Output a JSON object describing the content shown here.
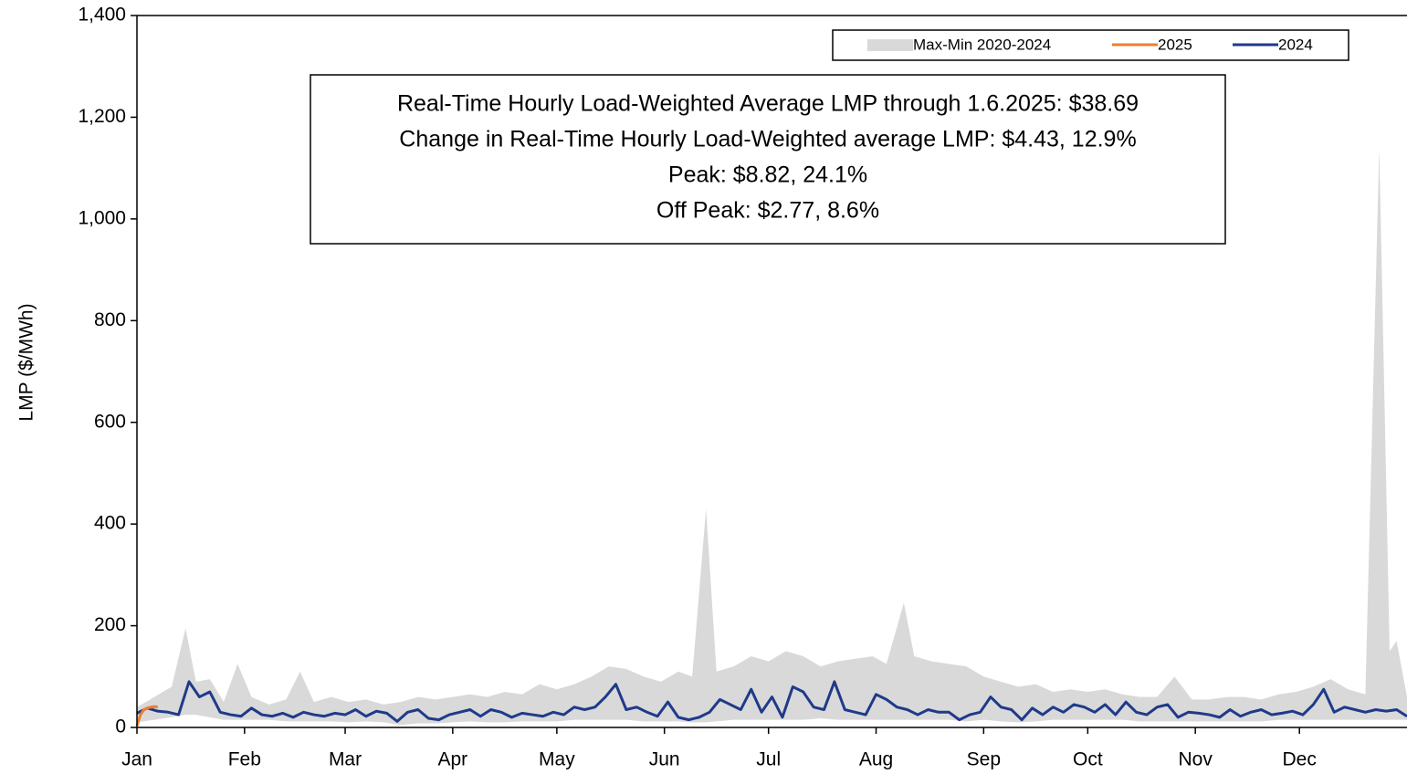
{
  "chart_data": {
    "type": "line",
    "y_label": "LMP ($/MWh)",
    "annotations": [
      "Real-Time Hourly Load-Weighted Average LMP through 1.6.2025: $38.69",
      "Change in Real-Time Hourly Load-Weighted average LMP: $4.43, 12.9%",
      "Peak: $8.82, 24.1%",
      "Off Peak: $2.77, 8.6%"
    ],
    "xlim": [
      0,
      366
    ],
    "xticks": [
      {
        "value": 0,
        "label": "Jan"
      },
      {
        "value": 31,
        "label": "Feb"
      },
      {
        "value": 60,
        "label": "Mar"
      },
      {
        "value": 91,
        "label": "Apr"
      },
      {
        "value": 121,
        "label": "May"
      },
      {
        "value": 152,
        "label": "Jun"
      },
      {
        "value": 182,
        "label": "Jul"
      },
      {
        "value": 213,
        "label": "Aug"
      },
      {
        "value": 244,
        "label": "Sep"
      },
      {
        "value": 274,
        "label": "Oct"
      },
      {
        "value": 305,
        "label": "Nov"
      },
      {
        "value": 335,
        "label": "Dec"
      }
    ],
    "ylim": [
      0,
      1400
    ],
    "yticks": [
      0,
      200,
      400,
      600,
      800,
      {
        "value": 1000,
        "label": "1,000"
      },
      {
        "value": 1200,
        "label": "1,200"
      },
      {
        "value": 1400,
        "label": "1,400"
      }
    ],
    "legend": "upper right",
    "band": {
      "name": "Max-Min 2020-2024",
      "color": "#d9d9d9",
      "x": [
        0,
        5,
        10,
        14,
        17,
        21,
        25,
        29,
        33,
        38,
        43,
        47,
        51,
        56,
        61,
        66,
        71,
        76,
        81,
        86,
        91,
        96,
        101,
        106,
        111,
        116,
        121,
        126,
        131,
        136,
        141,
        146,
        151,
        156,
        160,
        164,
        167,
        172,
        177,
        182,
        187,
        192,
        197,
        202,
        207,
        212,
        216,
        221,
        224,
        229,
        234,
        239,
        244,
        249,
        254,
        259,
        264,
        269,
        274,
        279,
        284,
        289,
        294,
        299,
        304,
        309,
        314,
        319,
        324,
        329,
        334,
        339,
        344,
        349,
        354,
        358,
        361,
        363,
        366
      ],
      "low": [
        10,
        15,
        20,
        25,
        25,
        20,
        15,
        15,
        15,
        15,
        12,
        12,
        12,
        12,
        10,
        12,
        10,
        5,
        8,
        8,
        10,
        12,
        10,
        10,
        12,
        12,
        12,
        15,
        15,
        15,
        15,
        12,
        12,
        12,
        10,
        10,
        12,
        15,
        15,
        15,
        15,
        15,
        18,
        15,
        15,
        15,
        15,
        15,
        15,
        15,
        15,
        12,
        15,
        12,
        10,
        12,
        15,
        15,
        15,
        15,
        15,
        12,
        12,
        12,
        12,
        12,
        12,
        12,
        12,
        15,
        15,
        15,
        15,
        15,
        15,
        15,
        15,
        15,
        15
      ],
      "high": [
        40,
        60,
        80,
        195,
        90,
        95,
        50,
        125,
        60,
        45,
        55,
        110,
        50,
        60,
        50,
        55,
        45,
        50,
        60,
        55,
        60,
        65,
        60,
        70,
        65,
        85,
        75,
        85,
        100,
        120,
        115,
        100,
        90,
        110,
        100,
        430,
        110,
        120,
        140,
        130,
        150,
        140,
        120,
        130,
        135,
        140,
        125,
        245,
        140,
        130,
        125,
        120,
        100,
        90,
        80,
        85,
        70,
        75,
        70,
        75,
        65,
        60,
        60,
        100,
        55,
        55,
        60,
        60,
        55,
        65,
        70,
        80,
        95,
        75,
        65,
        1140,
        150,
        170,
        60
      ]
    },
    "series": [
      {
        "name": "2025",
        "color": "#ed7d31",
        "x": [
          0,
          1,
          2,
          3,
          4,
          5,
          6
        ],
        "values": [
          3,
          25,
          35,
          38,
          40,
          41,
          40
        ]
      },
      {
        "name": "2024",
        "color": "#1f3a8a",
        "x": [
          0,
          3,
          6,
          9,
          12,
          15,
          18,
          21,
          24,
          27,
          30,
          33,
          36,
          39,
          42,
          45,
          48,
          51,
          54,
          57,
          60,
          63,
          66,
          69,
          72,
          75,
          78,
          81,
          84,
          87,
          90,
          93,
          96,
          99,
          102,
          105,
          108,
          111,
          114,
          117,
          120,
          123,
          126,
          129,
          132,
          135,
          138,
          141,
          144,
          147,
          150,
          153,
          156,
          159,
          162,
          165,
          168,
          171,
          174,
          177,
          180,
          183,
          186,
          189,
          192,
          195,
          198,
          201,
          204,
          207,
          210,
          213,
          216,
          219,
          222,
          225,
          228,
          231,
          234,
          237,
          240,
          243,
          246,
          249,
          252,
          255,
          258,
          261,
          264,
          267,
          270,
          273,
          276,
          279,
          282,
          285,
          288,
          291,
          294,
          297,
          300,
          303,
          306,
          309,
          312,
          315,
          318,
          321,
          324,
          327,
          330,
          333,
          336,
          339,
          342,
          345,
          348,
          351,
          354,
          357,
          360,
          363,
          366
        ],
        "values": [
          28,
          38,
          32,
          30,
          25,
          90,
          60,
          70,
          30,
          25,
          22,
          38,
          25,
          22,
          28,
          20,
          30,
          25,
          22,
          28,
          25,
          35,
          22,
          32,
          28,
          12,
          30,
          35,
          18,
          15,
          25,
          30,
          35,
          22,
          35,
          30,
          20,
          28,
          25,
          22,
          30,
          25,
          40,
          35,
          40,
          60,
          85,
          35,
          40,
          30,
          22,
          50,
          20,
          15,
          20,
          30,
          55,
          45,
          35,
          75,
          30,
          60,
          20,
          80,
          70,
          40,
          35,
          90,
          35,
          30,
          25,
          65,
          55,
          40,
          35,
          25,
          35,
          30,
          30,
          15,
          25,
          30,
          60,
          40,
          35,
          15,
          38,
          25,
          40,
          30,
          45,
          40,
          30,
          45,
          25,
          50,
          30,
          25,
          40,
          45,
          20,
          30,
          28,
          25,
          20,
          35,
          22,
          30,
          35,
          25,
          28,
          32,
          25,
          45,
          75,
          30,
          40,
          35,
          30,
          35,
          32,
          35,
          22
        ]
      }
    ]
  }
}
